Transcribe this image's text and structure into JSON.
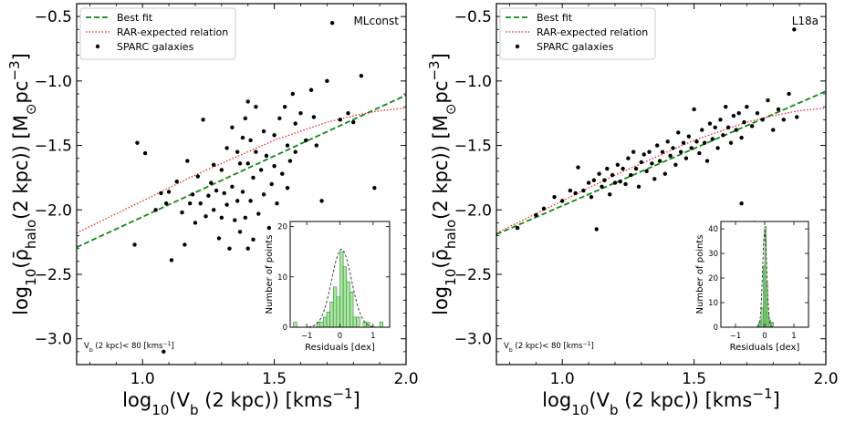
{
  "colors": {
    "best_fit": "#118811",
    "rar": "#ee1111",
    "points": "#000000",
    "hist_fill": "#a8e6a0",
    "hist_edge": "#2e8b2e",
    "gauss": "#333333"
  },
  "chart_data": [
    {
      "type": "scatter",
      "annotation": "MLconst",
      "xlabel": "log₁₀(V_b (2 kpc)) [kms⁻¹]",
      "ylabel": "log₁₀(ρ̄_halo(2 kpc)) [M⊙pc⁻³]",
      "xlim": [
        0.75,
        2.0
      ],
      "ylim": [
        -3.2,
        -0.4
      ],
      "xticks": [
        "1.0",
        "1.5",
        "2.0"
      ],
      "yticks": [
        "−3.0",
        "−2.5",
        "−2.0",
        "−1.5",
        "−1.0",
        "−0.5"
      ],
      "grid": false,
      "legend": {
        "position": "top-left",
        "entries": [
          "Best fit",
          "RAR-expected relation",
          "SPARC galaxies"
        ]
      },
      "note": "V_b (2 kpc)< 80 [kms⁻¹]",
      "series": [
        {
          "name": "Best fit",
          "style": "dashed",
          "x": [
            0.75,
            2.0
          ],
          "y": [
            -2.29,
            -1.11
          ]
        },
        {
          "name": "RAR-expected relation",
          "style": "dotted",
          "x": [
            0.75,
            0.9,
            1.0,
            1.1,
            1.2,
            1.3,
            1.4,
            1.5,
            1.6,
            1.7,
            1.8,
            1.9,
            2.0
          ],
          "y": [
            -2.18,
            -2.03,
            -1.93,
            -1.83,
            -1.73,
            -1.64,
            -1.55,
            -1.46,
            -1.39,
            -1.32,
            -1.27,
            -1.23,
            -1.21
          ]
        },
        {
          "name": "SPARC galaxies",
          "style": "points",
          "points": [
            [
              0.97,
              -2.27
            ],
            [
              0.98,
              -1.48
            ],
            [
              1.01,
              -1.56
            ],
            [
              1.05,
              -2.0
            ],
            [
              1.07,
              -1.87
            ],
            [
              1.08,
              -3.1
            ],
            [
              1.09,
              -1.95
            ],
            [
              1.1,
              -1.86
            ],
            [
              1.11,
              -2.39
            ],
            [
              1.13,
              -1.78
            ],
            [
              1.15,
              -2.02
            ],
            [
              1.16,
              -2.27
            ],
            [
              1.17,
              -1.62
            ],
            [
              1.18,
              -1.95
            ],
            [
              1.19,
              -1.88
            ],
            [
              1.2,
              -2.1
            ],
            [
              1.21,
              -1.74
            ],
            [
              1.22,
              -1.95
            ],
            [
              1.23,
              -1.3
            ],
            [
              1.24,
              -2.05
            ],
            [
              1.25,
              -1.89
            ],
            [
              1.26,
              -1.79
            ],
            [
              1.27,
              -1.65
            ],
            [
              1.27,
              -2.0
            ],
            [
              1.28,
              -1.85
            ],
            [
              1.29,
              -2.22
            ],
            [
              1.3,
              -1.69
            ],
            [
              1.3,
              -2.06
            ],
            [
              1.31,
              -1.87
            ],
            [
              1.32,
              -1.52
            ],
            [
              1.32,
              -1.96
            ],
            [
              1.33,
              -2.3
            ],
            [
              1.34,
              -1.36
            ],
            [
              1.34,
              -1.82
            ],
            [
              1.35,
              -2.08
            ],
            [
              1.36,
              -1.55
            ],
            [
              1.36,
              -1.93
            ],
            [
              1.37,
              -1.64
            ],
            [
              1.37,
              -2.17
            ],
            [
              1.38,
              -1.44
            ],
            [
              1.38,
              -1.86
            ],
            [
              1.39,
              -1.29
            ],
            [
              1.39,
              -2.06
            ],
            [
              1.4,
              -1.64
            ],
            [
              1.4,
              -2.3
            ],
            [
              1.4,
              -1.16
            ],
            [
              1.41,
              -1.46
            ],
            [
              1.41,
              -1.93
            ],
            [
              1.42,
              -1.75
            ],
            [
              1.42,
              -2.23
            ],
            [
              1.43,
              -1.55
            ],
            [
              1.43,
              -1.2
            ],
            [
              1.44,
              -2.03
            ],
            [
              1.45,
              -1.69
            ],
            [
              1.46,
              -1.39
            ],
            [
              1.46,
              -1.88
            ],
            [
              1.47,
              -1.58
            ],
            [
              1.48,
              -2.14
            ],
            [
              1.49,
              -1.8
            ],
            [
              1.5,
              -1.42
            ],
            [
              1.5,
              -1.66
            ],
            [
              1.51,
              -1.95
            ],
            [
              1.52,
              -1.29
            ],
            [
              1.53,
              -1.72
            ],
            [
              1.54,
              -1.2
            ],
            [
              1.55,
              -1.5
            ],
            [
              1.55,
              -1.83
            ],
            [
              1.56,
              -1.62
            ],
            [
              1.57,
              -1.1
            ],
            [
              1.58,
              -1.33
            ],
            [
              1.58,
              -1.55
            ],
            [
              1.6,
              -1.25
            ],
            [
              1.62,
              -1.46
            ],
            [
              1.64,
              -1.07
            ],
            [
              1.65,
              -1.28
            ],
            [
              1.66,
              -1.5
            ],
            [
              1.68,
              -1.93
            ],
            [
              1.7,
              -1.0
            ],
            [
              1.72,
              -0.55
            ],
            [
              1.75,
              -1.3
            ],
            [
              1.78,
              -1.25
            ],
            [
              1.8,
              -1.32
            ],
            [
              1.83,
              -0.96
            ],
            [
              1.88,
              -1.83
            ]
          ]
        }
      ],
      "inset": {
        "type": "histogram",
        "xlabel": "Residuals [dex]",
        "ylabel": "Number of points",
        "xlim": [
          -1.5,
          1.5
        ],
        "ylim": [
          0,
          21
        ],
        "xticks": [
          "−1",
          "0",
          "1"
        ],
        "yticks": [
          "0",
          "10",
          "20"
        ],
        "bin_width": 0.1,
        "bin_starts": [
          -1.4,
          -1.3,
          -1.2,
          -1.1,
          -1.0,
          -0.9,
          -0.8,
          -0.7,
          -0.6,
          -0.5,
          -0.4,
          -0.3,
          -0.2,
          -0.1,
          0.0,
          0.1,
          0.2,
          0.3,
          0.4,
          0.5,
          0.6,
          0.7,
          0.8,
          0.9,
          1.0,
          1.1,
          1.2
        ],
        "counts": [
          1,
          0,
          0,
          0,
          0,
          0,
          0,
          1,
          1,
          2,
          3,
          5,
          8,
          6,
          15,
          12,
          9,
          7,
          2,
          2,
          0,
          1,
          1,
          0,
          0,
          0,
          1
        ],
        "gaussian": {
          "amplitude": 15.5,
          "mean": 0.05,
          "sigma": 0.3
        }
      }
    },
    {
      "type": "scatter",
      "annotation": "L18a",
      "xlabel": "log₁₀(V_b (2 kpc)) [kms⁻¹]",
      "ylabel": "log₁₀(ρ̄_halo(2 kpc)) [M⊙pc⁻³]",
      "xlim": [
        0.75,
        2.0
      ],
      "ylim": [
        -3.2,
        -0.4
      ],
      "xticks": [
        "1.0",
        "1.5",
        "2.0"
      ],
      "yticks": [
        "−3.0",
        "−2.5",
        "−2.0",
        "−1.5",
        "−1.0",
        "−0.5"
      ],
      "grid": false,
      "legend": {
        "position": "top-left",
        "entries": [
          "Best fit",
          "RAR-expected relation",
          "SPARC galaxies"
        ]
      },
      "note": "V_b (2 kpc)< 80 [kms⁻¹]",
      "series": [
        {
          "name": "Best fit",
          "style": "dashed",
          "x": [
            0.75,
            2.0
          ],
          "y": [
            -2.19,
            -1.08
          ]
        },
        {
          "name": "RAR-expected relation",
          "style": "dotted",
          "x": [
            0.75,
            0.9,
            1.0,
            1.1,
            1.2,
            1.3,
            1.4,
            1.5,
            1.6,
            1.7,
            1.8,
            1.9,
            2.0
          ],
          "y": [
            -2.18,
            -2.03,
            -1.93,
            -1.83,
            -1.73,
            -1.64,
            -1.55,
            -1.46,
            -1.39,
            -1.32,
            -1.27,
            -1.23,
            -1.21
          ]
        },
        {
          "name": "SPARC galaxies",
          "style": "points",
          "points": [
            [
              0.83,
              -2.14
            ],
            [
              0.9,
              -2.04
            ],
            [
              0.93,
              -1.99
            ],
            [
              0.97,
              -1.9
            ],
            [
              1.0,
              -1.93
            ],
            [
              1.03,
              -1.85
            ],
            [
              1.05,
              -1.87
            ],
            [
              1.06,
              -1.67
            ],
            [
              1.08,
              -1.85
            ],
            [
              1.1,
              -1.79
            ],
            [
              1.11,
              -1.9
            ],
            [
              1.12,
              -1.77
            ],
            [
              1.13,
              -2.15
            ],
            [
              1.14,
              -1.72
            ],
            [
              1.15,
              -1.82
            ],
            [
              1.16,
              -1.77
            ],
            [
              1.17,
              -1.68
            ],
            [
              1.18,
              -1.88
            ],
            [
              1.19,
              -1.73
            ],
            [
              1.2,
              -1.79
            ],
            [
              1.21,
              -1.65
            ],
            [
              1.22,
              -1.78
            ],
            [
              1.23,
              -1.68
            ],
            [
              1.24,
              -1.8
            ],
            [
              1.25,
              -1.6
            ],
            [
              1.26,
              -1.73
            ],
            [
              1.27,
              -1.55
            ],
            [
              1.28,
              -1.68
            ],
            [
              1.29,
              -1.82
            ],
            [
              1.3,
              -1.63
            ],
            [
              1.31,
              -1.57
            ],
            [
              1.32,
              -1.7
            ],
            [
              1.33,
              -1.55
            ],
            [
              1.34,
              -1.64
            ],
            [
              1.35,
              -1.76
            ],
            [
              1.36,
              -1.5
            ],
            [
              1.37,
              -1.62
            ],
            [
              1.38,
              -1.55
            ],
            [
              1.39,
              -1.72
            ],
            [
              1.4,
              -1.47
            ],
            [
              1.41,
              -1.58
            ],
            [
              1.42,
              -1.52
            ],
            [
              1.43,
              -1.65
            ],
            [
              1.44,
              -1.4
            ],
            [
              1.45,
              -1.55
            ],
            [
              1.46,
              -1.48
            ],
            [
              1.47,
              -1.6
            ],
            [
              1.48,
              -1.43
            ],
            [
              1.49,
              -1.52
            ],
            [
              1.5,
              -1.22
            ],
            [
              1.51,
              -1.47
            ],
            [
              1.52,
              -1.56
            ],
            [
              1.53,
              -1.38
            ],
            [
              1.54,
              -1.48
            ],
            [
              1.55,
              -1.62
            ],
            [
              1.56,
              -1.33
            ],
            [
              1.57,
              -1.45
            ],
            [
              1.58,
              -1.36
            ],
            [
              1.59,
              -1.52
            ],
            [
              1.6,
              -1.3
            ],
            [
              1.61,
              -1.42
            ],
            [
              1.62,
              -1.2
            ],
            [
              1.63,
              -1.36
            ],
            [
              1.64,
              -1.48
            ],
            [
              1.65,
              -1.27
            ],
            [
              1.66,
              -1.38
            ],
            [
              1.67,
              -1.25
            ],
            [
              1.68,
              -1.44
            ],
            [
              1.69,
              -1.32
            ],
            [
              1.7,
              -1.2
            ],
            [
              1.72,
              -1.35
            ],
            [
              1.74,
              -1.25
            ],
            [
              1.76,
              -1.3
            ],
            [
              1.78,
              -1.15
            ],
            [
              1.8,
              -1.38
            ],
            [
              1.82,
              -1.22
            ],
            [
              1.84,
              -1.3
            ],
            [
              1.86,
              -1.1
            ],
            [
              1.88,
              -0.6
            ],
            [
              1.89,
              -1.28
            ],
            [
              1.73,
              -2.1
            ],
            [
              1.68,
              -1.95
            ]
          ]
        }
      ],
      "inset": {
        "type": "histogram",
        "xlabel": "Residuals [dex]",
        "ylabel": "Number of points",
        "xlim": [
          -1.5,
          1.5
        ],
        "ylim": [
          0,
          43
        ],
        "xticks": [
          "−1",
          "0",
          "1"
        ],
        "yticks": [
          "0",
          "10",
          "20",
          "30",
          "40"
        ],
        "bin_width": 0.05,
        "bin_starts": [
          -0.25,
          -0.2,
          -0.15,
          -0.1,
          -0.05,
          0.0,
          0.05,
          0.1,
          0.15,
          0.2,
          0.25
        ],
        "counts": [
          1,
          2,
          3,
          8,
          25,
          41,
          18,
          6,
          3,
          2,
          2
        ],
        "gaussian": {
          "amplitude": 40,
          "mean": 0.0,
          "sigma": 0.07
        }
      }
    }
  ]
}
